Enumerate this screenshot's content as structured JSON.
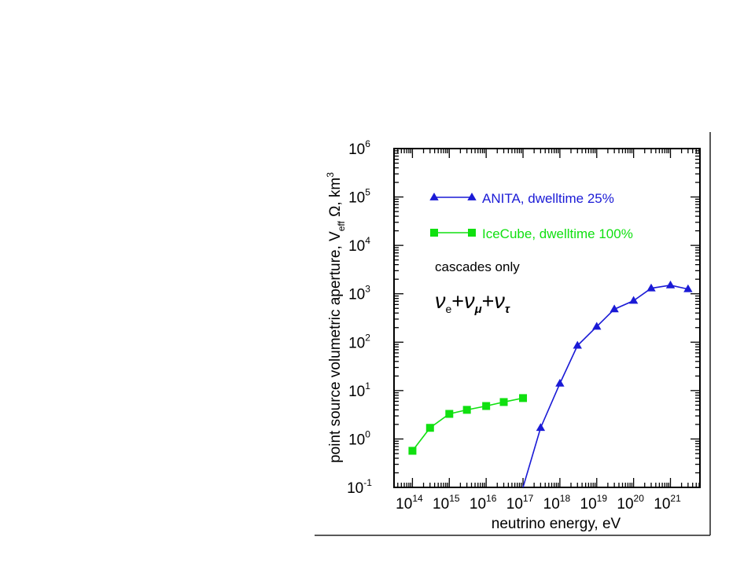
{
  "chart_data": {
    "type": "line",
    "title": "",
    "xlabel": "neutrino energy, eV",
    "ylabel": "point source volumetric aperture, V",
    "ylabel_sub": "eff",
    "ylabel_tail": " Ω, km",
    "ylabel_sup": "3",
    "x_scale": "log",
    "y_scale": "log",
    "xlim_exp": [
      13.5,
      21.8
    ],
    "ylim_exp": [
      -1,
      6
    ],
    "x_ticks": [
      {
        "exp": 14,
        "base": "10",
        "sup": "14"
      },
      {
        "exp": 15,
        "base": "10",
        "sup": "15"
      },
      {
        "exp": 16,
        "base": "10",
        "sup": "16"
      },
      {
        "exp": 17,
        "base": "10",
        "sup": "17"
      },
      {
        "exp": 18,
        "base": "10",
        "sup": "18"
      },
      {
        "exp": 19,
        "base": "10",
        "sup": "19"
      },
      {
        "exp": 20,
        "base": "10",
        "sup": "20"
      },
      {
        "exp": 21,
        "base": "10",
        "sup": "21"
      }
    ],
    "y_ticks": [
      {
        "exp": -1,
        "base": "10",
        "sup": "-1"
      },
      {
        "exp": 0,
        "base": "10",
        "sup": "0"
      },
      {
        "exp": 1,
        "base": "10",
        "sup": "1"
      },
      {
        "exp": 2,
        "base": "10",
        "sup": "2"
      },
      {
        "exp": 3,
        "base": "10",
        "sup": "3"
      },
      {
        "exp": 4,
        "base": "10",
        "sup": "4"
      },
      {
        "exp": 5,
        "base": "10",
        "sup": "5"
      },
      {
        "exp": 6,
        "base": "10",
        "sup": "6"
      }
    ],
    "grid": false,
    "legend_position": "upper-left",
    "series": [
      {
        "name": "ANITA, dwelltime 25%",
        "color": "#1a1ad6",
        "marker": "triangle",
        "x": [
          1e+17,
          3e+17,
          1e+18,
          3e+18,
          1e+19,
          3e+19,
          1e+20,
          3e+20,
          1e+21,
          3e+21
        ],
        "y": [
          0.1,
          1.7,
          14,
          85,
          210,
          480,
          720,
          1300,
          1500,
          1250
        ]
      },
      {
        "name": "IceCube, dwelltime 100%",
        "color": "#10e010",
        "marker": "square",
        "x": [
          100000000000000.0,
          300000000000000.0,
          1000000000000000.0,
          3000000000000000.0,
          1e+16,
          3e+16,
          1e+17
        ],
        "y": [
          0.57,
          1.7,
          3.3,
          4.0,
          4.8,
          5.8,
          7.0
        ]
      }
    ],
    "annotations": {
      "note": "cascades only",
      "formula": [
        {
          "base": "ν",
          "sub": "e"
        },
        {
          "op": "+"
        },
        {
          "base": "ν",
          "sub": "μ"
        },
        {
          "op": "+"
        },
        {
          "base": "ν",
          "sub": "τ"
        }
      ]
    }
  }
}
